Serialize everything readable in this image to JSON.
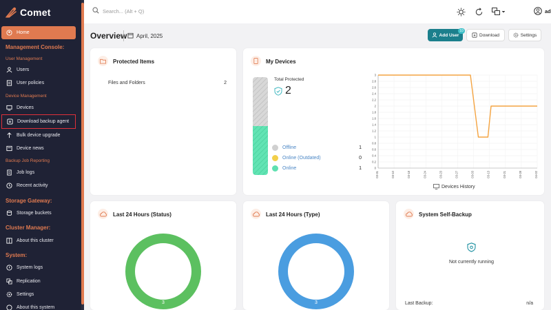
{
  "app": {
    "name": "Comet"
  },
  "sidebar": {
    "home": "Home",
    "management_console": "Management Console:",
    "user_management": "User Management",
    "users": "Users",
    "user_policies": "User policies",
    "device_management": "Device Management",
    "devices": "Devices",
    "download_backup_agent": "Download backup agent",
    "bulk_device_upgrade": "Bulk device upgrade",
    "device_news": "Device news",
    "backup_job_reporting": "Backup Job Reporting",
    "job_logs": "Job logs",
    "recent_activity": "Recent activity",
    "storage_gateway": "Storage Gateway:",
    "storage_buckets": "Storage buckets",
    "cluster_manager": "Cluster Manager:",
    "about_cluster": "About this cluster",
    "system": "System:",
    "system_logs": "System logs",
    "replication": "Replication",
    "settings": "Settings",
    "about_system": "About this system"
  },
  "topbar": {
    "search_placeholder": "Search... (Alt + Q)",
    "user": "admin"
  },
  "header": {
    "title": "Overview",
    "date": "April, 2025",
    "add_user": "Add User",
    "add_user_badge": "10",
    "download": "Download",
    "settings": "Settings"
  },
  "protected_items": {
    "title": "Protected Items",
    "row_label": "Files and Folders",
    "row_value": "2"
  },
  "my_devices": {
    "title": "My Devices",
    "total_label": "Total Protected",
    "total": "2",
    "legend": [
      {
        "label": "Offline",
        "count": "1",
        "color": "#d0d0d0"
      },
      {
        "label": "Online (Outdated)",
        "count": "0",
        "color": "#f2cf4a"
      },
      {
        "label": "Online",
        "count": "1",
        "color": "#5fe0b0"
      }
    ],
    "offline_fraction": 0.5,
    "online_fraction": 0.5,
    "history_label": "Devices History"
  },
  "chart_data": {
    "type": "line",
    "y_ticks": [
      "3",
      "2.8",
      "2.6",
      "2.4",
      "2.2",
      "2",
      "1.8",
      "1.6",
      "1.4",
      "1.2",
      "1",
      "0.8",
      "0.6",
      "0.4",
      "0.2",
      "0"
    ],
    "x_ticks": [
      "03-31",
      "03-10",
      "03-18",
      "03-24",
      "03-23",
      "03-27",
      "03-03",
      "03-13",
      "03-21",
      "03-28",
      "04-02"
    ],
    "ylim": [
      0,
      3
    ],
    "series": [
      {
        "color": "#f4a340",
        "points": [
          [
            0,
            3
          ],
          [
            0.3,
            3
          ],
          [
            0.58,
            3
          ],
          [
            0.63,
            1
          ],
          [
            0.69,
            1
          ],
          [
            0.71,
            2
          ],
          [
            1,
            2
          ]
        ]
      }
    ]
  },
  "last24_status": {
    "title": "Last 24 Hours (Status)",
    "value": "3",
    "color": "#5cc060"
  },
  "last24_type": {
    "title": "Last 24 Hours (Type)",
    "value": "3",
    "color": "#4a9de0"
  },
  "self_backup": {
    "title": "System Self-Backup",
    "status": "Not currently running",
    "last_label": "Last Backup:",
    "last_value": "n/a"
  }
}
